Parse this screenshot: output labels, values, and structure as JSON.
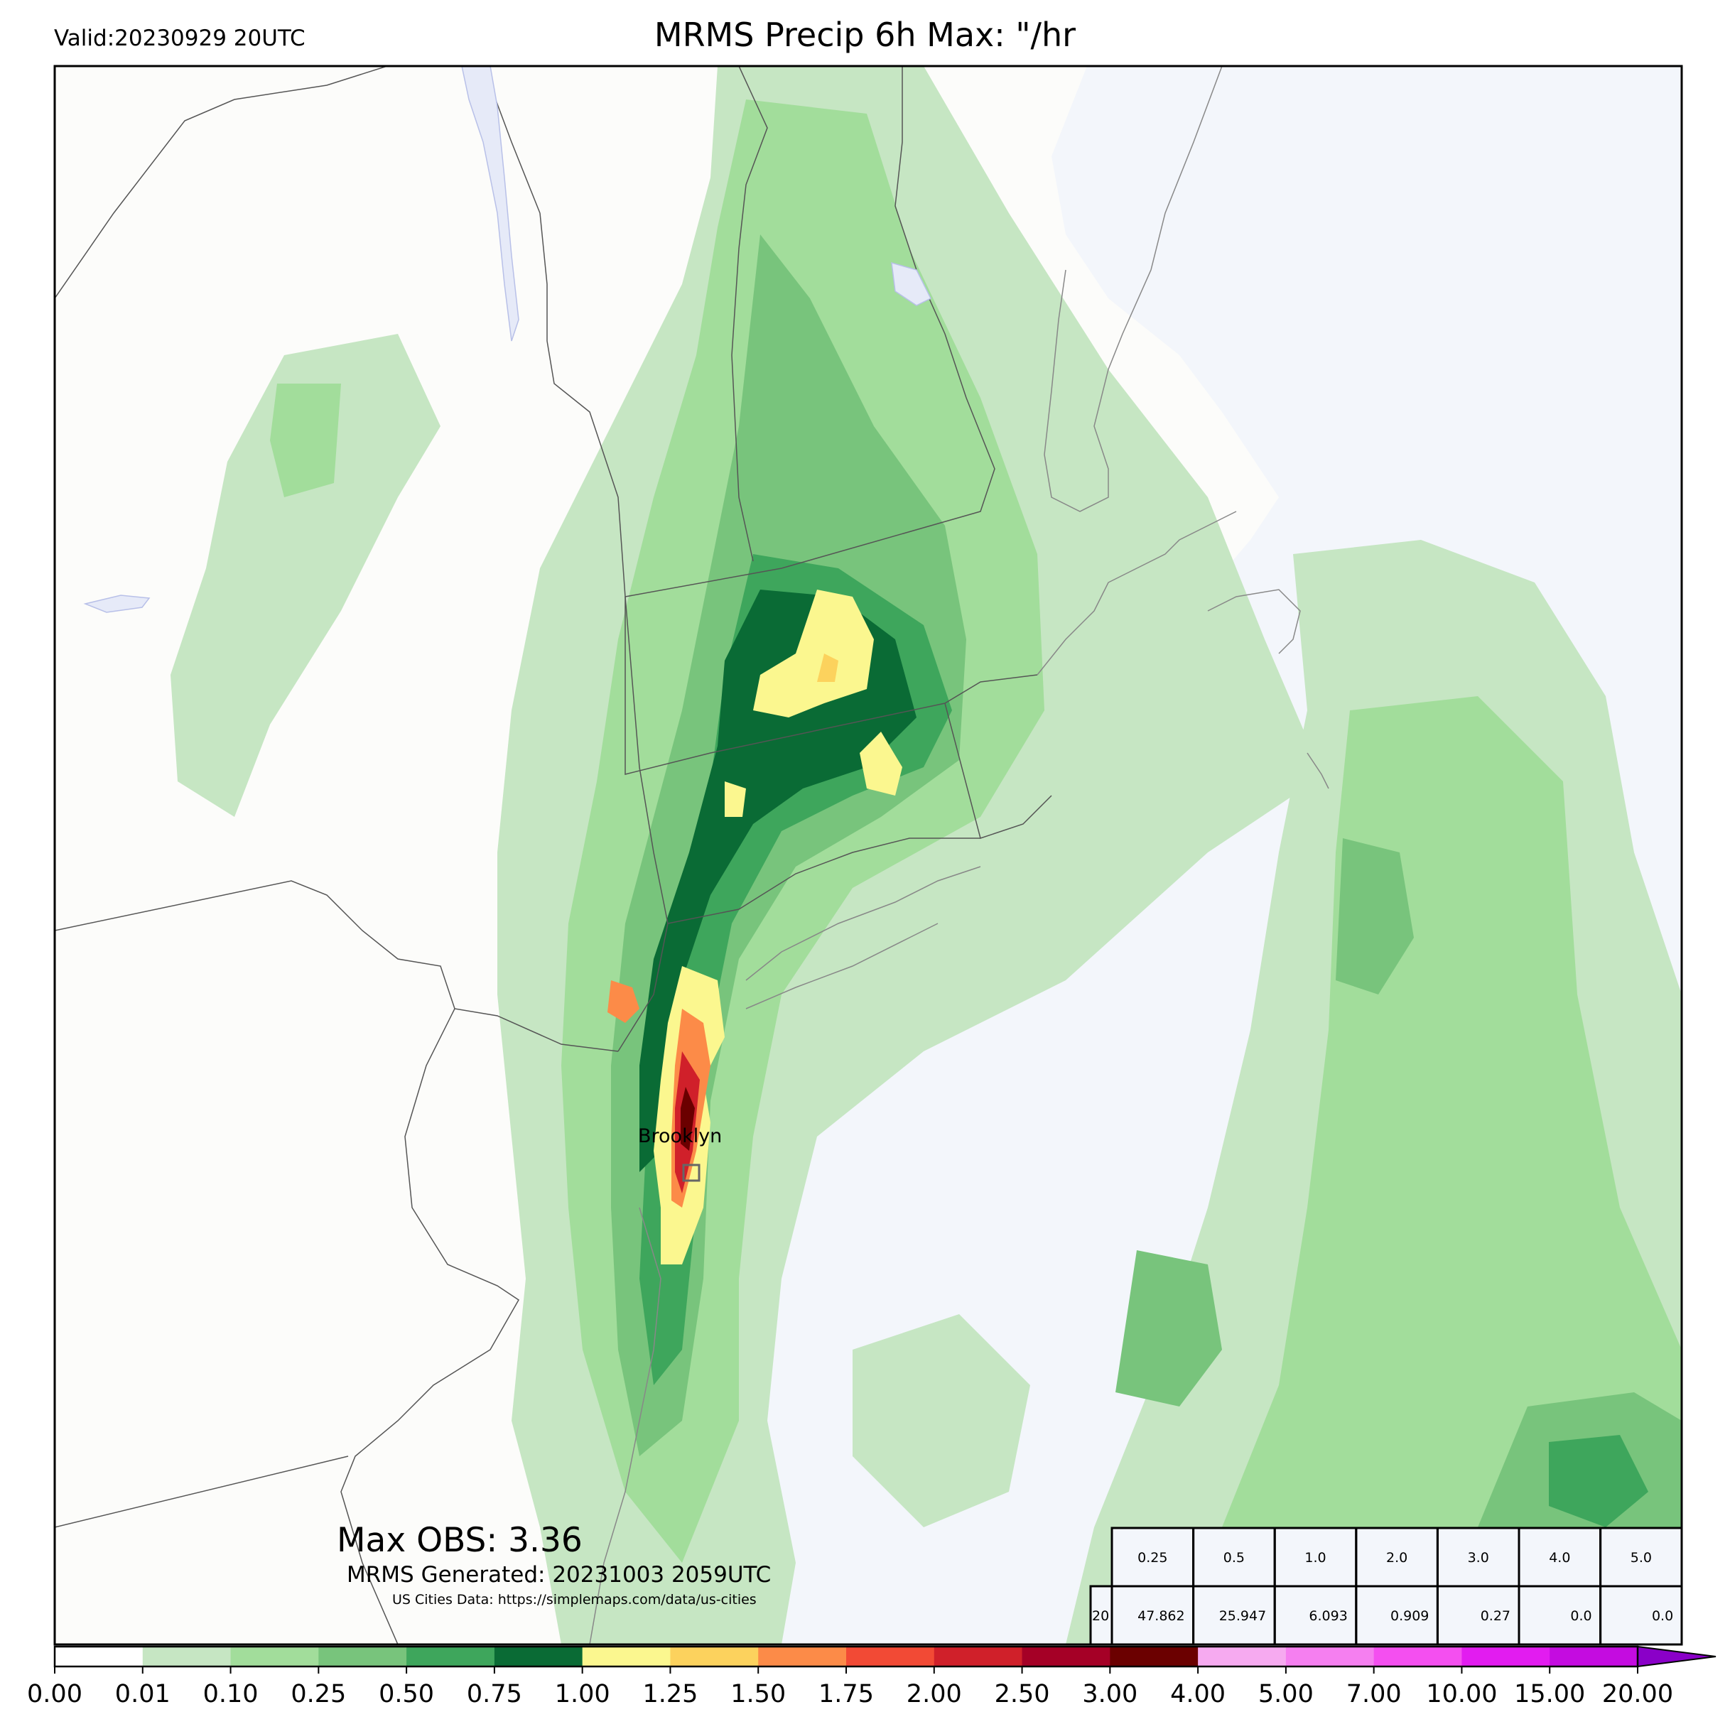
{
  "header": {
    "valid": "Valid:20230929 20UTC",
    "title": "MRMS Precip 6h Max: \"/hr"
  },
  "annotations": {
    "max_obs": "Max OBS: 3.36",
    "generated": "MRMS Generated: 20231003 2059UTC",
    "cities_credit": "US Cities Data: https://simplemaps.com/data/us-cities",
    "city_label": "Brooklyn"
  },
  "stats_table": {
    "thresholds": [
      "0.25",
      "0.5",
      "1.0",
      "2.0",
      "3.0",
      "4.0",
      "5.0"
    ],
    "row_label": "20",
    "values": [
      "47.862",
      "25.947",
      "6.093",
      "0.909",
      "0.27",
      "0.0",
      "0.0"
    ]
  },
  "colorbar": {
    "ticks": [
      "0.00",
      "0.01",
      "0.10",
      "0.25",
      "0.50",
      "0.75",
      "1.00",
      "1.25",
      "1.50",
      "1.75",
      "2.00",
      "2.50",
      "3.00",
      "4.00",
      "5.00",
      "7.00",
      "10.00",
      "15.00",
      "20.00"
    ],
    "colors": [
      "#ffffff",
      "#c6e6c3",
      "#a2dd9b",
      "#78c47c",
      "#3ea65c",
      "#0a6b35",
      "#fbf78f",
      "#fcd25d",
      "#fc8b48",
      "#f24a35",
      "#d0202a",
      "#a50026",
      "#6b0000",
      "#f6aaf0",
      "#f57ff0",
      "#f44ff0",
      "#e21cf0",
      "#c40ce0",
      "#8a00c8"
    ]
  },
  "map": {
    "land_color": "#fcfcfa",
    "water_color": "#f3f6fb"
  }
}
